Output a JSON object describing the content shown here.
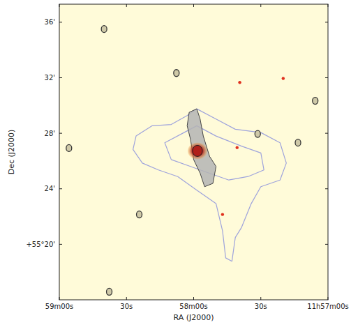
{
  "chart_data": {
    "type": "contour",
    "x_label": "RA (J2000)",
    "y_label": "Dec (J2000)",
    "xlim": [
      3540,
      3420
    ],
    "ylim": [
      16,
      37.3
    ],
    "xticks": [
      {
        "value": 3540,
        "label": "59m00s"
      },
      {
        "value": 3510,
        "label": "30s"
      },
      {
        "value": 3480,
        "label": "58m00s"
      },
      {
        "value": 3450,
        "label": "30s"
      },
      {
        "value": 3420,
        "label": "11h57m00s"
      }
    ],
    "yticks": [
      {
        "value": 20,
        "label": "+55°20'"
      },
      {
        "value": 24,
        "label": "24'"
      },
      {
        "value": 28,
        "label": "28'"
      },
      {
        "value": 32,
        "label": "32'"
      },
      {
        "value": 36,
        "label": "36'"
      }
    ],
    "grid": false,
    "contours": [
      {
        "color": "#9ea3dc",
        "x": [
          3505.7,
          3498.6,
          3490.0,
          3482.9,
          3478.6,
          3470.0,
          3461.4,
          3450.0,
          3441.4,
          3438.6,
          3441.4,
          3450.0,
          3454.3,
          3458.6,
          3461.4,
          3462.9,
          3465.7,
          3467.1,
          3470.0,
          3478.6,
          3487.1,
          3495.7,
          3502.9,
          3507.1
        ],
        "y": [
          27.8,
          28.54,
          28.63,
          29.27,
          29.76,
          29.02,
          28.29,
          28.05,
          27.32,
          25.85,
          24.63,
          24.15,
          22.93,
          21.22,
          20.49,
          18.78,
          19.02,
          20.97,
          22.93,
          23.9,
          24.88,
          25.36,
          25.85,
          26.83
        ]
      },
      {
        "color": "#9ea3dc",
        "x": [
          3492.9,
          3484.3,
          3478.6,
          3470.0,
          3458.6,
          3450.0,
          3448.6,
          3455.7,
          3464.3,
          3472.9,
          3481.4,
          3490.0
        ],
        "y": [
          27.32,
          28.05,
          28.54,
          27.8,
          27.07,
          26.58,
          25.36,
          24.88,
          24.63,
          25.12,
          25.61,
          26.1
        ]
      }
    ],
    "lobes": [
      {
        "color": "#b4b4b4",
        "x": [
          3482.0,
          3478.6,
          3477.1,
          3475.7,
          3472.9,
          3470.0,
          3471.4,
          3475.1,
          3477.1,
          3480.0,
          3481.4,
          3482.9
        ],
        "y": [
          29.51,
          29.76,
          29.02,
          27.8,
          26.34,
          25.61,
          24.39,
          24.15,
          25.12,
          26.1,
          27.56,
          28.54
        ]
      }
    ],
    "galaxy": {
      "x": 3478.3,
      "y": 26.73,
      "color": "#b0201a"
    },
    "sources": {
      "x": [
        3451.4,
        3433.4,
        3504.3,
        3517.7,
        3487.7,
        3425.7,
        3520.0,
        3535.7,
        3459.4,
        3460.6,
        3467.1,
        3440.0
      ],
      "y": [
        27.95,
        27.32,
        22.15,
        16.58,
        32.34,
        30.34,
        35.51,
        26.93,
        31.66,
        26.97,
        22.15,
        31.95
      ],
      "colors": [
        "#333333",
        "#333333",
        "#333333",
        "#333333",
        "#333333",
        "#333333",
        "#333333",
        "#333333",
        "#e0301e",
        "#e0301e",
        "#e0301e",
        "#e0301e"
      ]
    }
  }
}
